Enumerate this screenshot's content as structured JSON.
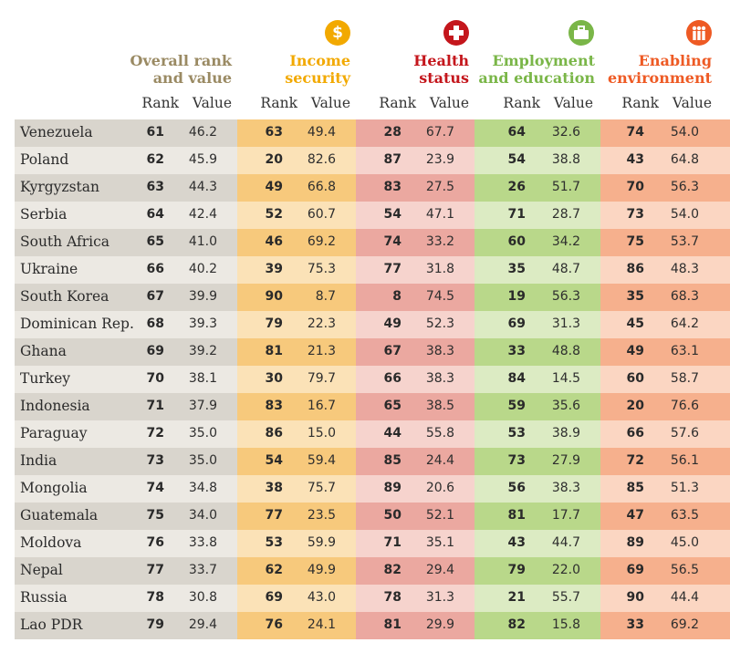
{
  "columns": {
    "overall": {
      "title_line1": "Overall rank",
      "title_line2": "and value"
    },
    "income": {
      "title_line1": "Income",
      "title_line2": "security",
      "icon": "dollar-icon"
    },
    "health": {
      "title_line1": "Health",
      "title_line2": "status",
      "icon": "plus-icon"
    },
    "employment": {
      "title_line1": "Employment",
      "title_line2": "and education",
      "icon": "briefcase-icon"
    },
    "enabling": {
      "title_line1": "Enabling",
      "title_line2": "environment",
      "icon": "people-icon"
    }
  },
  "subheaders": {
    "rank": "Rank",
    "value": "Value"
  },
  "colors": {
    "overall_title": "#9a8a63",
    "income": "#f2a900",
    "health": "#c4161c",
    "employment": "#7ab648",
    "enabling": "#ee5a24"
  },
  "rows": [
    {
      "country": "Venezuela",
      "overall_rank": "61",
      "overall_value": "46.2",
      "income_rank": "63",
      "income_value": "49.4",
      "health_rank": "28",
      "health_value": "67.7",
      "employment_rank": "64",
      "employment_value": "32.6",
      "enabling_rank": "74",
      "enabling_value": "54.0"
    },
    {
      "country": "Poland",
      "overall_rank": "62",
      "overall_value": "45.9",
      "income_rank": "20",
      "income_value": "82.6",
      "health_rank": "87",
      "health_value": "23.9",
      "employment_rank": "54",
      "employment_value": "38.8",
      "enabling_rank": "43",
      "enabling_value": "64.8"
    },
    {
      "country": "Kyrgyzstan",
      "overall_rank": "63",
      "overall_value": "44.3",
      "income_rank": "49",
      "income_value": "66.8",
      "health_rank": "83",
      "health_value": "27.5",
      "employment_rank": "26",
      "employment_value": "51.7",
      "enabling_rank": "70",
      "enabling_value": "56.3"
    },
    {
      "country": "Serbia",
      "overall_rank": "64",
      "overall_value": "42.4",
      "income_rank": "52",
      "income_value": "60.7",
      "health_rank": "54",
      "health_value": "47.1",
      "employment_rank": "71",
      "employment_value": "28.7",
      "enabling_rank": "73",
      "enabling_value": "54.0"
    },
    {
      "country": "South Africa",
      "overall_rank": "65",
      "overall_value": "41.0",
      "income_rank": "46",
      "income_value": "69.2",
      "health_rank": "74",
      "health_value": "33.2",
      "employment_rank": "60",
      "employment_value": "34.2",
      "enabling_rank": "75",
      "enabling_value": "53.7"
    },
    {
      "country": "Ukraine",
      "overall_rank": "66",
      "overall_value": "40.2",
      "income_rank": "39",
      "income_value": "75.3",
      "health_rank": "77",
      "health_value": "31.8",
      "employment_rank": "35",
      "employment_value": "48.7",
      "enabling_rank": "86",
      "enabling_value": "48.3"
    },
    {
      "country": "South Korea",
      "overall_rank": "67",
      "overall_value": "39.9",
      "income_rank": "90",
      "income_value": "8.7",
      "health_rank": "8",
      "health_value": "74.5",
      "employment_rank": "19",
      "employment_value": "56.3",
      "enabling_rank": "35",
      "enabling_value": "68.3"
    },
    {
      "country": "Dominican Rep.",
      "overall_rank": "68",
      "overall_value": "39.3",
      "income_rank": "79",
      "income_value": "22.3",
      "health_rank": "49",
      "health_value": "52.3",
      "employment_rank": "69",
      "employment_value": "31.3",
      "enabling_rank": "45",
      "enabling_value": "64.2"
    },
    {
      "country": "Ghana",
      "overall_rank": "69",
      "overall_value": "39.2",
      "income_rank": "81",
      "income_value": "21.3",
      "health_rank": "67",
      "health_value": "38.3",
      "employment_rank": "33",
      "employment_value": "48.8",
      "enabling_rank": "49",
      "enabling_value": "63.1"
    },
    {
      "country": "Turkey",
      "overall_rank": "70",
      "overall_value": "38.1",
      "income_rank": "30",
      "income_value": "79.7",
      "health_rank": "66",
      "health_value": "38.3",
      "employment_rank": "84",
      "employment_value": "14.5",
      "enabling_rank": "60",
      "enabling_value": "58.7"
    },
    {
      "country": "Indonesia",
      "overall_rank": "71",
      "overall_value": "37.9",
      "income_rank": "83",
      "income_value": "16.7",
      "health_rank": "65",
      "health_value": "38.5",
      "employment_rank": "59",
      "employment_value": "35.6",
      "enabling_rank": "20",
      "enabling_value": "76.6"
    },
    {
      "country": "Paraguay",
      "overall_rank": "72",
      "overall_value": "35.0",
      "income_rank": "86",
      "income_value": "15.0",
      "health_rank": "44",
      "health_value": "55.8",
      "employment_rank": "53",
      "employment_value": "38.9",
      "enabling_rank": "66",
      "enabling_value": "57.6"
    },
    {
      "country": "India",
      "overall_rank": "73",
      "overall_value": "35.0",
      "income_rank": "54",
      "income_value": "59.4",
      "health_rank": "85",
      "health_value": "24.4",
      "employment_rank": "73",
      "employment_value": "27.9",
      "enabling_rank": "72",
      "enabling_value": "56.1"
    },
    {
      "country": "Mongolia",
      "overall_rank": "74",
      "overall_value": "34.8",
      "income_rank": "38",
      "income_value": "75.7",
      "health_rank": "89",
      "health_value": "20.6",
      "employment_rank": "56",
      "employment_value": "38.3",
      "enabling_rank": "85",
      "enabling_value": "51.3"
    },
    {
      "country": "Guatemala",
      "overall_rank": "75",
      "overall_value": "34.0",
      "income_rank": "77",
      "income_value": "23.5",
      "health_rank": "50",
      "health_value": "52.1",
      "employment_rank": "81",
      "employment_value": "17.7",
      "enabling_rank": "47",
      "enabling_value": "63.5"
    },
    {
      "country": "Moldova",
      "overall_rank": "76",
      "overall_value": "33.8",
      "income_rank": "53",
      "income_value": "59.9",
      "health_rank": "71",
      "health_value": "35.1",
      "employment_rank": "43",
      "employment_value": "44.7",
      "enabling_rank": "89",
      "enabling_value": "45.0"
    },
    {
      "country": "Nepal",
      "overall_rank": "77",
      "overall_value": "33.7",
      "income_rank": "62",
      "income_value": "49.9",
      "health_rank": "82",
      "health_value": "29.4",
      "employment_rank": "79",
      "employment_value": "22.0",
      "enabling_rank": "69",
      "enabling_value": "56.5"
    },
    {
      "country": "Russia",
      "overall_rank": "78",
      "overall_value": "30.8",
      "income_rank": "69",
      "income_value": "43.0",
      "health_rank": "78",
      "health_value": "31.3",
      "employment_rank": "21",
      "employment_value": "55.7",
      "enabling_rank": "90",
      "enabling_value": "44.4"
    },
    {
      "country": "Lao PDR",
      "overall_rank": "79",
      "overall_value": "29.4",
      "income_rank": "76",
      "income_value": "24.1",
      "health_rank": "81",
      "health_value": "29.9",
      "employment_rank": "82",
      "employment_value": "15.8",
      "enabling_rank": "33",
      "enabling_value": "69.2"
    }
  ]
}
